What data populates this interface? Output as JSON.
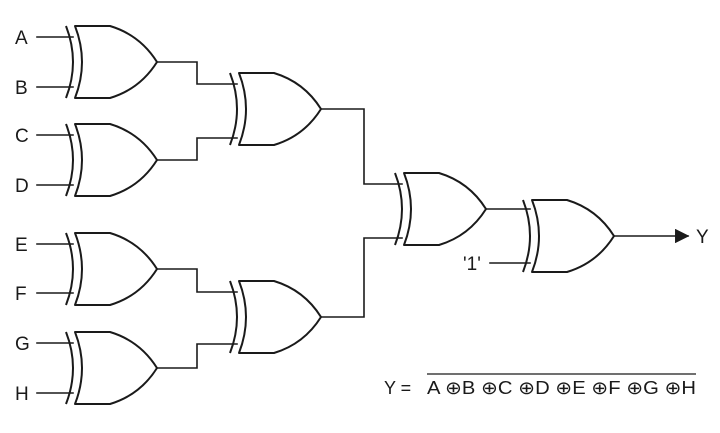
{
  "inputs": [
    "A",
    "B",
    "C",
    "D",
    "E",
    "F",
    "G",
    "H"
  ],
  "constant_input": "'1'",
  "output": "Y",
  "gate_type": "XOR",
  "equation": {
    "lhs": "Y = ",
    "rhs": "A ⊕B ⊕C ⊕D ⊕E ⊕F ⊕G ⊕H",
    "overline": true
  }
}
